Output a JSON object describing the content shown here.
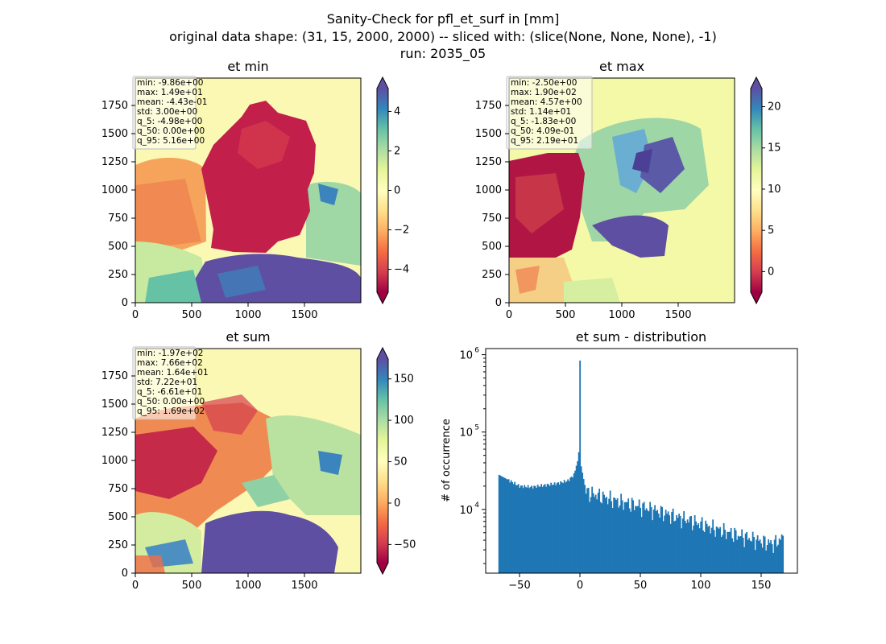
{
  "figure": {
    "title_lines": [
      "Sanity-Check for pfl_et_surf in [mm]",
      "original data shape: (31, 15, 2000, 2000) -- sliced with: (slice(None, None, None), -1)",
      "run: 2035_05"
    ]
  },
  "chart_data": [
    {
      "type": "heatmap",
      "title": "et min",
      "colormap": "Spectral",
      "xlim": [
        0,
        2000
      ],
      "ylim": [
        0,
        2000
      ],
      "x_ticks": [
        0,
        500,
        1000,
        1500
      ],
      "y_ticks": [
        0,
        250,
        500,
        750,
        1000,
        1250,
        1500,
        1750
      ],
      "colorbar": {
        "range": [
          -5.16,
          5.16
        ],
        "ticks": [
          4,
          2,
          0,
          -2,
          -4
        ],
        "tick_labels": [
          "4",
          "2",
          "0",
          "−2",
          "−4"
        ],
        "extend": "both"
      },
      "stats": [
        "min: -9.86e+00",
        "max: 1.49e+01",
        "mean: -4.43e-01",
        "std: 3.00e+00",
        "q_5: -4.98e+00",
        "q_50: 0.00e+00",
        "q_95: 5.16e+00"
      ]
    },
    {
      "type": "heatmap",
      "title": "et max",
      "colormap": "Spectral",
      "xlim": [
        0,
        2000
      ],
      "ylim": [
        0,
        2000
      ],
      "x_ticks": [
        0,
        500,
        1000,
        1500
      ],
      "y_ticks": [
        0,
        250,
        500,
        750,
        1000,
        1250,
        1500,
        1750
      ],
      "colorbar": {
        "range": [
          -2.5,
          22.2
        ],
        "ticks": [
          20,
          15,
          10,
          5,
          0
        ],
        "tick_labels": [
          "20",
          "15",
          "10",
          "5",
          "0"
        ],
        "extend": "both"
      },
      "stats": [
        "min: -2.50e+00",
        "max: 1.90e+02",
        "mean: 4.57e+00",
        "std: 1.14e+01",
        "q_5: -1.83e+00",
        "q_50: 4.09e-01",
        "q_95: 2.19e+01"
      ]
    },
    {
      "type": "heatmap",
      "title": "et sum",
      "colormap": "Spectral",
      "xlim": [
        0,
        2000
      ],
      "ylim": [
        0,
        2000
      ],
      "x_ticks": [
        0,
        500,
        1000,
        1500
      ],
      "y_ticks": [
        0,
        250,
        500,
        750,
        1000,
        1250,
        1500,
        1750
      ],
      "colorbar": {
        "range": [
          -72,
          174
        ],
        "ticks": [
          150,
          100,
          50,
          0,
          -50
        ],
        "tick_labels": [
          "150",
          "100",
          "50",
          "0",
          "−50"
        ],
        "extend": "both"
      },
      "stats": [
        "min: -1.97e+02",
        "max: 7.66e+02",
        "mean: 1.64e+01",
        "std: 7.22e+01",
        "q_5: -6.61e+01",
        "q_50: 0.00e+00",
        "q_95: 1.69e+02"
      ]
    },
    {
      "type": "bar",
      "title": "et sum - distribution",
      "ylabel": "# of occurrence",
      "yscale": "log",
      "color": "#1f77b4",
      "xlim": [
        -78,
        180
      ],
      "ylim": [
        1500,
        1200000
      ],
      "x_ticks": [
        -50,
        0,
        50,
        100,
        150
      ],
      "x_tick_labels": [
        "−50",
        "0",
        "50",
        "100",
        "150"
      ],
      "y_ticks": [
        10000,
        100000,
        1000000
      ],
      "y_tick_labels": [
        "10^4",
        "10^5",
        "10^6"
      ],
      "bin_width": 1,
      "x": [
        -67,
        -50,
        -40,
        -30,
        -20,
        -10,
        -5,
        -2,
        -1,
        0,
        1,
        5,
        10,
        20,
        30,
        40,
        50,
        60,
        70,
        80,
        90,
        100,
        110,
        120,
        130,
        140,
        150,
        160,
        168
      ],
      "values": [
        28000,
        20000,
        19500,
        20500,
        21500,
        23500,
        28000,
        42000,
        55000,
        840000,
        36000,
        17000,
        16000,
        14500,
        13000,
        12000,
        11000,
        10000,
        9000,
        8000,
        7300,
        6500,
        5800,
        5200,
        4700,
        4300,
        3900,
        3600,
        4300
      ]
    }
  ]
}
